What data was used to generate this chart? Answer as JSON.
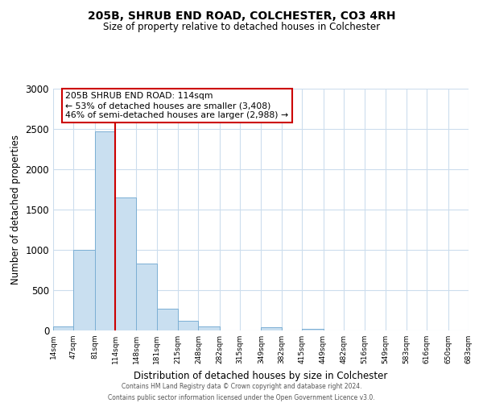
{
  "title": "205B, SHRUB END ROAD, COLCHESTER, CO3 4RH",
  "subtitle": "Size of property relative to detached houses in Colchester",
  "xlabel": "Distribution of detached houses by size in Colchester",
  "ylabel": "Number of detached properties",
  "bar_edges": [
    14,
    47,
    81,
    114,
    148,
    181,
    215,
    248,
    282,
    315,
    349,
    382,
    415,
    449,
    482,
    516,
    549,
    583,
    616,
    650,
    683
  ],
  "bar_heights": [
    55,
    1000,
    2470,
    1650,
    830,
    270,
    120,
    55,
    0,
    0,
    40,
    0,
    20,
    0,
    0,
    0,
    0,
    0,
    0,
    0
  ],
  "bar_color": "#c9dff0",
  "bar_edgecolor": "#7bafd4",
  "vline_x": 114,
  "vline_color": "#cc0000",
  "annotation_text_line1": "205B SHRUB END ROAD: 114sqm",
  "annotation_text_line2": "← 53% of detached houses are smaller (3,408)",
  "annotation_text_line3": "46% of semi-detached houses are larger (2,988) →",
  "box_edgecolor": "#cc0000",
  "ylim": [
    0,
    3000
  ],
  "yticks": [
    0,
    500,
    1000,
    1500,
    2000,
    2500,
    3000
  ],
  "tick_labels": [
    "14sqm",
    "47sqm",
    "81sqm",
    "114sqm",
    "148sqm",
    "181sqm",
    "215sqm",
    "248sqm",
    "282sqm",
    "315sqm",
    "349sqm",
    "382sqm",
    "415sqm",
    "449sqm",
    "482sqm",
    "516sqm",
    "549sqm",
    "583sqm",
    "616sqm",
    "650sqm",
    "683sqm"
  ],
  "footer_line1": "Contains HM Land Registry data © Crown copyright and database right 2024.",
  "footer_line2": "Contains public sector information licensed under the Open Government Licence v3.0.",
  "background_color": "#ffffff",
  "grid_color": "#ccdded"
}
